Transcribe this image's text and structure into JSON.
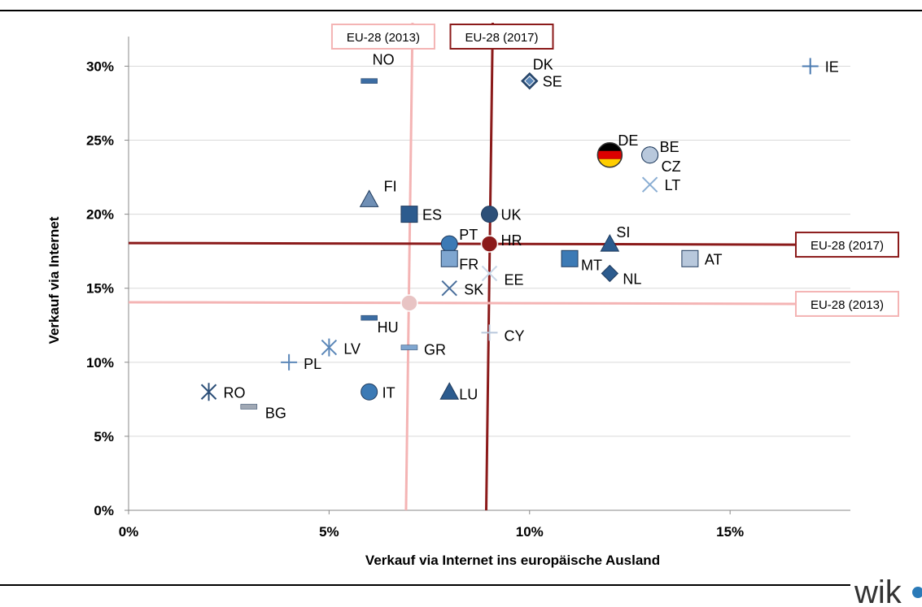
{
  "logo": {
    "text": "wik"
  },
  "chart_data": {
    "type": "scatter",
    "xlabel": "Verkauf via Internet ins europäische  Ausland",
    "ylabel": "Verkauf via Internet",
    "xlim": [
      0,
      18
    ],
    "ylim": [
      0,
      32
    ],
    "x_ticks": [
      0,
      5,
      10,
      15
    ],
    "x_tick_labels": [
      "0%",
      "5%",
      "10%",
      "15%"
    ],
    "y_ticks": [
      0,
      5,
      10,
      15,
      20,
      25,
      30
    ],
    "y_tick_labels": [
      "0%",
      "5%",
      "10%",
      "15%",
      "20%",
      "25%",
      "30%"
    ],
    "grid": "horizontal",
    "points": [
      {
        "label": "IE",
        "x": 17,
        "y": 30,
        "marker": "plus",
        "color": "#4a7ab0"
      },
      {
        "label": "NO",
        "x": 6,
        "y": 29,
        "marker": "dash",
        "color": "#3c6da3"
      },
      {
        "label": "DK",
        "x": 10,
        "y": 29,
        "marker": "diamond",
        "color": "#2c4f78"
      },
      {
        "label": "SE",
        "x": 10,
        "y": 29,
        "marker": "star",
        "color": "#5b87b8"
      },
      {
        "label": "DE",
        "x": 12,
        "y": 24,
        "marker": "flag",
        "color": "#000000"
      },
      {
        "label": "BE",
        "x": 13,
        "y": 24,
        "marker": "circle",
        "color": "#b8c8dc"
      },
      {
        "label": "CZ",
        "x": 13,
        "y": 24,
        "marker": "circle",
        "color": "#b8c8dc"
      },
      {
        "label": "LT",
        "x": 13,
        "y": 22,
        "marker": "cross",
        "color": "#8aaed3"
      },
      {
        "label": "FI",
        "x": 6,
        "y": 21,
        "marker": "triangle",
        "color": "#6f8fb5"
      },
      {
        "label": "ES",
        "x": 7,
        "y": 20,
        "marker": "square",
        "color": "#2c5b8e"
      },
      {
        "label": "UK",
        "x": 9,
        "y": 20,
        "marker": "circle",
        "color": "#2c4f78"
      },
      {
        "label": "PT",
        "x": 8,
        "y": 18,
        "marker": "circle",
        "color": "#3c7ab5"
      },
      {
        "label": "HR",
        "x": 9,
        "y": 18,
        "marker": "circle",
        "color": "#8b1a1a"
      },
      {
        "label": "SI",
        "x": 12,
        "y": 18,
        "marker": "triangle",
        "color": "#2c5b8e"
      },
      {
        "label": "FR",
        "x": 8,
        "y": 17,
        "marker": "square",
        "color": "#7fa6d0"
      },
      {
        "label": "MT",
        "x": 11,
        "y": 17,
        "marker": "square",
        "color": "#3c7ab5"
      },
      {
        "label": "AT",
        "x": 14,
        "y": 17,
        "marker": "square",
        "color": "#b8c8dc"
      },
      {
        "label": "EE",
        "x": 9,
        "y": 16,
        "marker": "cross",
        "color": "#c8d6e6"
      },
      {
        "label": "NL",
        "x": 12,
        "y": 16,
        "marker": "diamond",
        "color": "#2c5b8e"
      },
      {
        "label": "SK",
        "x": 8,
        "y": 15,
        "marker": "cross",
        "color": "#4a6f9c"
      },
      {
        "label": "HU",
        "x": 6,
        "y": 13,
        "marker": "dash",
        "color": "#3c6da3"
      },
      {
        "label": "CY",
        "x": 9,
        "y": 12,
        "marker": "plus",
        "color": "#b8c8dc"
      },
      {
        "label": "LV",
        "x": 5,
        "y": 11,
        "marker": "asterisk",
        "color": "#5b87b8"
      },
      {
        "label": "GR",
        "x": 7,
        "y": 11,
        "marker": "dash",
        "color": "#7fa6d0"
      },
      {
        "label": "PL",
        "x": 4,
        "y": 10,
        "marker": "plus",
        "color": "#5b87b8"
      },
      {
        "label": "RO",
        "x": 2,
        "y": 8,
        "marker": "asterisk",
        "color": "#2c4f78"
      },
      {
        "label": "IT",
        "x": 6,
        "y": 8,
        "marker": "circle",
        "color": "#3c7ab5"
      },
      {
        "label": "LU",
        "x": 8,
        "y": 8,
        "marker": "triangle",
        "color": "#2c5b8e"
      },
      {
        "label": "BG",
        "x": 3,
        "y": 7,
        "marker": "dash",
        "color": "#a0a8b4"
      }
    ],
    "reference_points": [
      {
        "label": "EU-28 (2013)",
        "x": 7,
        "y": 14,
        "color": "#e8c4c4"
      },
      {
        "label": "EU-28 (2017)",
        "x": 9,
        "y": 18,
        "color": "#8b1a1a"
      }
    ],
    "reference_lines": [
      {
        "label": "EU-28 (2013)",
        "orientation": "vertical",
        "value": 7,
        "color": "#f4b4b4"
      },
      {
        "label": "EU-28 (2017)",
        "orientation": "vertical",
        "value": 9,
        "color": "#8b1a1a"
      },
      {
        "label": "EU-28 (2017)",
        "orientation": "horizontal",
        "value": 18,
        "color": "#8b1a1a"
      },
      {
        "label": "EU-28 (2013)",
        "orientation": "horizontal",
        "value": 14,
        "color": "#f4b4b4"
      }
    ]
  }
}
